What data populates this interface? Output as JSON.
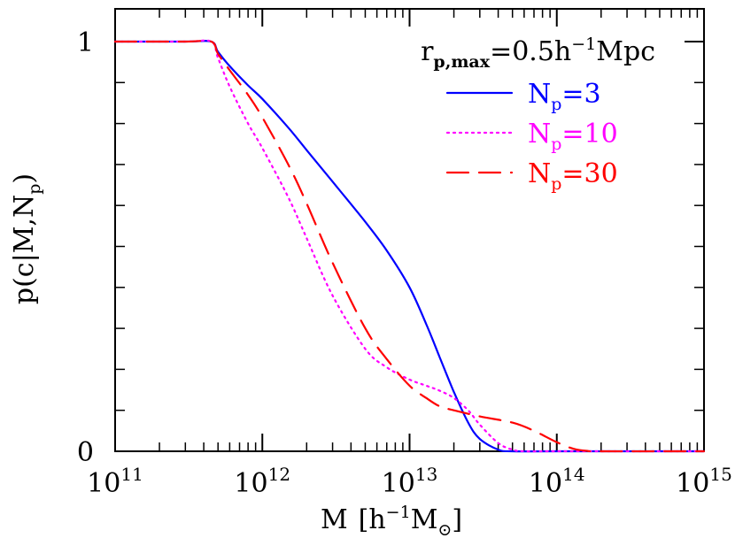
{
  "chart_data": {
    "type": "line",
    "xscale": "log",
    "xlim": [
      100000000000.0,
      1000000000000000.0
    ],
    "ylim": [
      0,
      1
    ],
    "xlabel": "M  [h⁻¹M⊙]",
    "ylabel": "p(c|M,N_p)",
    "annotation": "r_p,max = 0.5h⁻¹Mpc",
    "legend_position": "top-right",
    "x_ticks": [
      {
        "value": 100000000000.0,
        "base": "10",
        "exp": "11"
      },
      {
        "value": 1000000000000.0,
        "base": "10",
        "exp": "12"
      },
      {
        "value": 10000000000000.0,
        "base": "10",
        "exp": "13"
      },
      {
        "value": 100000000000000.0,
        "base": "10",
        "exp": "14"
      },
      {
        "value": 1000000000000000.0,
        "base": "10",
        "exp": "15"
      }
    ],
    "y_ticks": [
      {
        "value": 0,
        "label": "0"
      },
      {
        "value": 1,
        "label": "1"
      }
    ],
    "series": [
      {
        "name": "N_p=3",
        "color": "#0000ff",
        "dash": "solid",
        "x": [
          100000000000.0,
          300000000000.0,
          450000000000.0,
          500000000000.0,
          600000000000.0,
          800000000000.0,
          1000000000000.0,
          1500000000000.0,
          2000000000000.0,
          3000000000000.0,
          5000000000000.0,
          7000000000000.0,
          10000000000000.0,
          13000000000000.0,
          16000000000000.0,
          20000000000000.0,
          25000000000000.0,
          30000000000000.0,
          40000000000000.0,
          50000000000000.0,
          100000000000000.0,
          1000000000000000.0
        ],
        "y": [
          1,
          1,
          1,
          0.975,
          0.94,
          0.893,
          0.86,
          0.79,
          0.735,
          0.658,
          0.56,
          0.49,
          0.4,
          0.31,
          0.23,
          0.145,
          0.07,
          0.03,
          0.004,
          0,
          0,
          0
        ]
      },
      {
        "name": "N_p=10",
        "color": "#ff00ff",
        "dash": "dotted",
        "x": [
          100000000000.0,
          300000000000.0,
          450000000000.0,
          500000000000.0,
          600000000000.0,
          800000000000.0,
          1000000000000.0,
          1500000000000.0,
          2000000000000.0,
          3000000000000.0,
          5000000000000.0,
          7000000000000.0,
          10000000000000.0,
          13000000000000.0,
          16000000000000.0,
          20000000000000.0,
          25000000000000.0,
          30000000000000.0,
          40000000000000.0,
          50000000000000.0,
          60000000000000.0,
          100000000000000.0,
          1000000000000000.0
        ],
        "y": [
          1,
          1,
          1,
          0.96,
          0.89,
          0.8,
          0.74,
          0.62,
          0.52,
          0.38,
          0.25,
          0.205,
          0.175,
          0.16,
          0.148,
          0.13,
          0.1,
          0.065,
          0.02,
          0.004,
          0,
          0,
          0
        ]
      },
      {
        "name": "N_p=30",
        "color": "#ff0000",
        "dash": "dashed",
        "x": [
          100000000000.0,
          300000000000.0,
          450000000000.0,
          500000000000.0,
          600000000000.0,
          800000000000.0,
          1000000000000.0,
          1500000000000.0,
          2000000000000.0,
          3000000000000.0,
          5000000000000.0,
          7000000000000.0,
          10000000000000.0,
          13000000000000.0,
          16000000000000.0,
          20000000000000.0,
          30000000000000.0,
          50000000000000.0,
          70000000000000.0,
          100000000000000.0,
          130000000000000.0,
          160000000000000.0,
          200000000000000.0,
          1000000000000000.0
        ],
        "y": [
          1,
          1,
          1,
          0.97,
          0.93,
          0.87,
          0.815,
          0.7,
          0.605,
          0.46,
          0.3,
          0.225,
          0.16,
          0.13,
          0.11,
          0.1,
          0.085,
          0.07,
          0.05,
          0.022,
          0.006,
          0.001,
          0,
          0
        ]
      }
    ]
  }
}
